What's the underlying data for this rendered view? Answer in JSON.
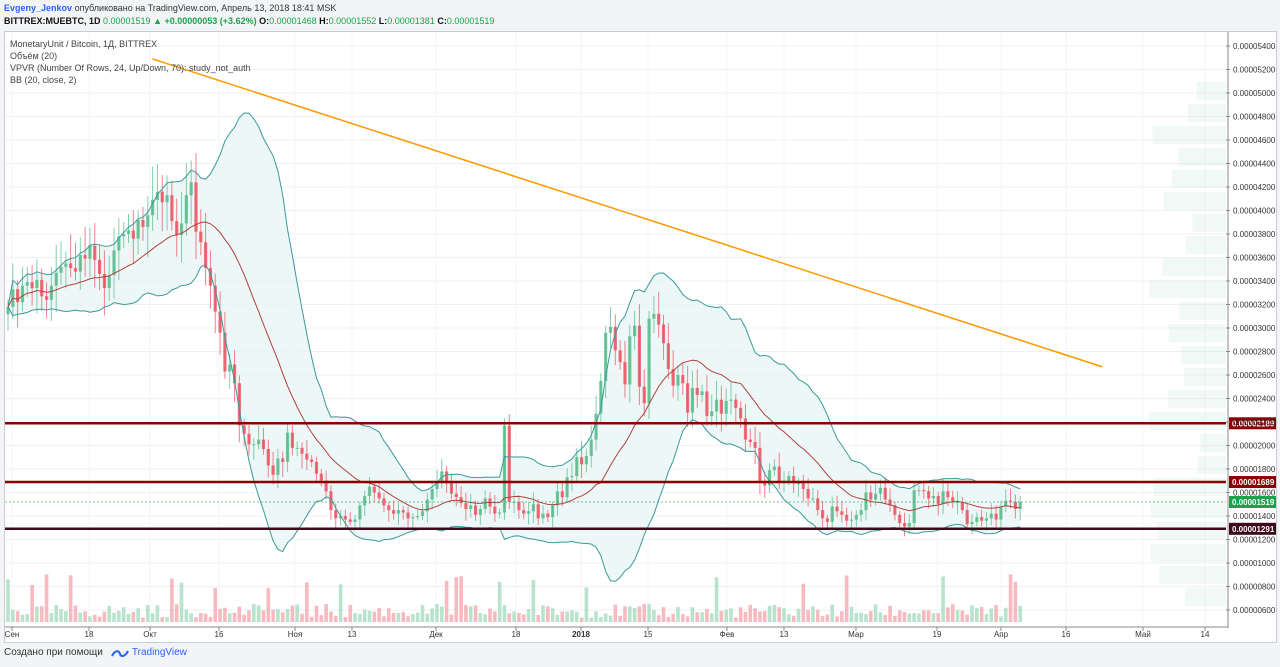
{
  "header": {
    "author": "Evgeny_Jenkov",
    "published_text": "опубликовано на TradingView.com, Апрель 13, 2018 18:41 MSK",
    "symbol_line": "BITTREX:MUEBTC, 1D",
    "last": "0.00001519",
    "change": "▲ +0.00000053 (+3.62%)",
    "o_label": "O:",
    "o_value": "0.00001468",
    "h_label": "H:",
    "h_value": "0.00001552",
    "l_label": "L:",
    "l_value": "0.00001381",
    "c_label": "C:",
    "c_value": "0.00001519"
  },
  "legend": {
    "title": "MonetaryUnit / Bitcoin, 1Д, BITTREX",
    "volume": "Объём (20)",
    "vpvr": "VPVR (Number Of Rows, 24, Up/Down, 70): study_not_auth",
    "bb": "BB (20, close, 2)"
  },
  "footer": {
    "created_with": "Создано при помощи",
    "brand": "TradingView"
  },
  "chart_data": {
    "type": "candlestick",
    "pair": "MUE/BTC",
    "timeframe": "1D",
    "exchange": "BITTREX",
    "ylim": [
      5e-06,
      5.55e-05
    ],
    "y_ticks": [
      "0.00000600",
      "0.00000800",
      "0.00001000",
      "0.00001200",
      "0.00001400",
      "0.00001600",
      "0.00001800",
      "0.00002000",
      "0.00002200",
      "0.00002400",
      "0.00002600",
      "0.00002800",
      "0.00003000",
      "0.00003200",
      "0.00003400",
      "0.00003600",
      "0.00003800",
      "0.00004000",
      "0.00004200",
      "0.00004400",
      "0.00004600",
      "0.00004800",
      "0.00005000",
      "0.00005200",
      "0.00005400"
    ],
    "x_ticks": [
      "Сен",
      "18",
      "Окт",
      "16",
      "Ноя",
      "13",
      "Дек",
      "18",
      "2018",
      "15",
      "Фев",
      "13",
      "Мар",
      "19",
      "Апр",
      "16",
      "Май",
      "14"
    ],
    "bold_x_ticks": [
      "2018"
    ],
    "horizontal_levels": [
      {
        "price": 2.189e-05,
        "label": "0.00002189",
        "color": "#8b0000"
      },
      {
        "price": 1.689e-05,
        "label": "0.00001689",
        "color": "#8b0000"
      },
      {
        "price": 1.291e-05,
        "label": "0.00001291",
        "color": "#3d0a1a"
      }
    ],
    "last_price": {
      "price": 1.519e-05,
      "label": "0.00001519",
      "color": "#1aa34a"
    },
    "trendline": {
      "from": {
        "date": "2017-10-01",
        "price": 5.29e-05
      },
      "to": {
        "date": "2018-04-16",
        "price": 2.67e-05
      },
      "color": "#ff9800"
    },
    "close": [
      3.18e-05,
      3.33e-05,
      3.22e-05,
      3.36e-05,
      3.39e-05,
      3.34e-05,
      3.41e-05,
      3.27e-05,
      3.24e-05,
      3.36e-05,
      3.47e-05,
      3.52e-05,
      3.55e-05,
      3.51e-05,
      3.48e-05,
      3.62e-05,
      3.59e-05,
      3.7e-05,
      3.58e-05,
      3.46e-05,
      3.34e-05,
      3.45e-05,
      3.66e-05,
      3.78e-05,
      3.8e-05,
      3.83e-05,
      3.76e-05,
      3.92e-05,
      3.86e-05,
      3.96e-05,
      4.09e-05,
      4.16e-05,
      4.07e-05,
      4.13e-05,
      3.91e-05,
      3.79e-05,
      3.89e-05,
      4.13e-05,
      4.24e-05,
      3.82e-05,
      3.73e-05,
      3.51e-05,
      3.36e-05,
      3.14e-05,
      2.96e-05,
      2.63e-05,
      2.69e-05,
      2.53e-05,
      2.17e-05,
      2.1e-05,
      2.01e-05,
      2.01e-05,
      2.05e-05,
      1.97e-05,
      1.83e-05,
      1.75e-05,
      1.89e-05,
      1.86e-05,
      2.11e-05,
      1.98e-05,
      1.98e-05,
      1.93e-05,
      1.88e-05,
      1.86e-05,
      1.76e-05,
      1.7e-05,
      1.61e-05,
      1.45e-05,
      1.38e-05,
      1.4e-05,
      1.37e-05,
      1.35e-05,
      1.37e-05,
      1.49e-05,
      1.57e-05,
      1.65e-05,
      1.6e-05,
      1.55e-05,
      1.49e-05,
      1.45e-05,
      1.42e-05,
      1.45e-05,
      1.43e-05,
      1.38e-05,
      1.39e-05,
      1.4e-05,
      1.44e-05,
      1.54e-05,
      1.63e-05,
      1.68e-05,
      1.78e-05,
      1.68e-05,
      1.59e-05,
      1.56e-05,
      1.51e-05,
      1.46e-05,
      1.49e-05,
      1.41e-05,
      1.46e-05,
      1.55e-05,
      1.48e-05,
      1.42e-05,
      1.43e-05,
      2.17e-05,
      1.52e-05,
      1.52e-05,
      1.45e-05,
      1.42e-05,
      1.44e-05,
      1.5e-05,
      1.38e-05,
      1.42e-05,
      1.39e-05,
      1.49e-05,
      1.61e-05,
      1.56e-05,
      1.73e-05,
      1.74e-05,
      1.9e-05,
      1.84e-05,
      1.91e-05,
      2.05e-05,
      2.27e-05,
      2.55e-05,
      2.96e-05,
      3.01e-05,
      2.81e-05,
      2.71e-05,
      2.52e-05,
      2.93e-05,
      3.02e-05,
      2.5e-05,
      2.36e-05,
      3.08e-05,
      3.12e-05,
      3.03e-05,
      2.87e-05,
      2.65e-05,
      2.51e-05,
      2.6e-05,
      2.53e-05,
      2.28e-05,
      2.49e-05,
      2.43e-05,
      2.46e-05,
      2.25e-05,
      2.29e-05,
      2.39e-05,
      2.27e-05,
      2.38e-05,
      2.39e-05,
      2.32e-05,
      2.23e-05,
      2.05e-05,
      2.03e-05,
      1.98e-05,
      1.7e-05,
      1.66e-05,
      1.79e-05,
      1.82e-05,
      1.69e-05,
      1.7e-05,
      1.74e-05,
      1.68e-05,
      1.68e-05,
      1.63e-05,
      1.55e-05,
      1.55e-05,
      1.45e-05,
      1.38e-05,
      1.35e-05,
      1.48e-05,
      1.44e-05,
      1.41e-05,
      1.36e-05,
      1.37e-05,
      1.41e-05,
      1.45e-05,
      1.6e-05,
      1.54e-05,
      1.59e-05,
      1.64e-05,
      1.54e-05,
      1.49e-05,
      1.41e-05,
      1.34e-05,
      1.31e-05,
      1.34e-05,
      1.62e-05,
      1.62e-05,
      1.61e-05,
      1.55e-05,
      1.57e-05,
      1.5e-05,
      1.61e-05,
      1.56e-05,
      1.52e-05,
      1.52e-05,
      1.45e-05,
      1.33e-05,
      1.35e-05,
      1.39e-05,
      1.36e-05,
      1.38e-05,
      1.42e-05,
      1.37e-05,
      1.48e-05,
      1.53e-05,
      1.52e-05,
      1.46e-05,
      1.52e-05
    ]
  }
}
